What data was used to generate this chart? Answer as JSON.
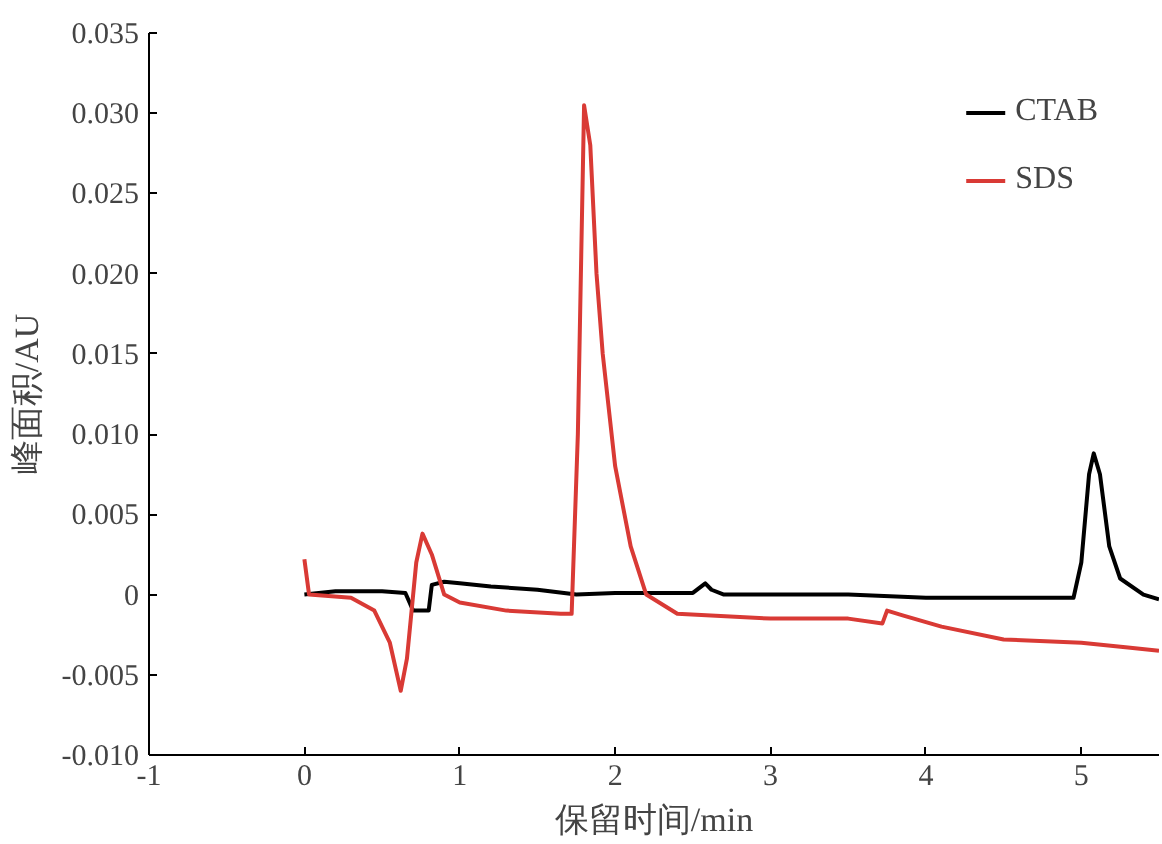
{
  "chart_data": {
    "type": "line",
    "xlabel": "保留时间/min",
    "ylabel": "峰面积/AU",
    "xlim": [
      -1,
      5.5
    ],
    "ylim": [
      -0.01,
      0.035
    ],
    "xticks": [
      -1,
      0,
      1,
      2,
      3,
      4,
      5
    ],
    "yticks": [
      {
        "value": -0.01,
        "label": "-0.010"
      },
      {
        "value": -0.005,
        "label": "-0.005"
      },
      {
        "value": 0,
        "label": "0"
      },
      {
        "value": 0.005,
        "label": "0.005"
      },
      {
        "value": 0.01,
        "label": "0.010"
      },
      {
        "value": 0.015,
        "label": "0.015"
      },
      {
        "value": 0.02,
        "label": "0.020"
      },
      {
        "value": 0.025,
        "label": "0.025"
      },
      {
        "value": 0.03,
        "label": "0.030"
      },
      {
        "value": 0.035,
        "label": "0.035"
      }
    ],
    "grid": false,
    "legend": "top right",
    "marker": "none",
    "series": [
      {
        "name": "CTAB",
        "color": "#000000",
        "x": [
          0,
          0.2,
          0.5,
          0.65,
          0.7,
          0.8,
          0.82,
          0.9,
          1.0,
          1.2,
          1.5,
          1.75,
          2.0,
          2.5,
          2.58,
          2.62,
          2.7,
          3.0,
          3.5,
          4.0,
          4.5,
          4.95,
          5.0,
          5.05,
          5.08,
          5.12,
          5.18,
          5.25,
          5.4,
          5.5
        ],
        "values": [
          0,
          0.0002,
          0.0002,
          0.0001,
          -0.001,
          -0.001,
          0.0006,
          0.0008,
          0.0007,
          0.0005,
          0.0003,
          0,
          0.0001,
          0.0001,
          0.0007,
          0.0003,
          0,
          0,
          0,
          -0.0002,
          -0.0002,
          -0.0002,
          0.002,
          0.0075,
          0.0088,
          0.0075,
          0.003,
          0.001,
          0,
          -0.0003
        ]
      },
      {
        "name": "SDS",
        "color": "#d93a35",
        "x": [
          0,
          0.03,
          0.3,
          0.45,
          0.55,
          0.62,
          0.66,
          0.72,
          0.76,
          0.82,
          0.9,
          1.0,
          1.3,
          1.65,
          1.72,
          1.76,
          1.8,
          1.84,
          1.88,
          1.92,
          2.0,
          2.1,
          2.2,
          2.4,
          3.0,
          3.5,
          3.72,
          3.75,
          3.85,
          4.1,
          4.5,
          5.0,
          5.3,
          5.5
        ],
        "values": [
          0.0022,
          0,
          -0.0002,
          -0.001,
          -0.003,
          -0.006,
          -0.004,
          0.002,
          0.0038,
          0.0025,
          0,
          -0.0005,
          -0.001,
          -0.0012,
          -0.0012,
          0.01,
          0.0305,
          0.028,
          0.02,
          0.015,
          0.008,
          0.003,
          0,
          -0.0012,
          -0.0015,
          -0.0015,
          -0.0018,
          -0.001,
          -0.0013,
          -0.002,
          -0.0028,
          -0.003,
          -0.0033,
          -0.0035
        ]
      }
    ]
  }
}
